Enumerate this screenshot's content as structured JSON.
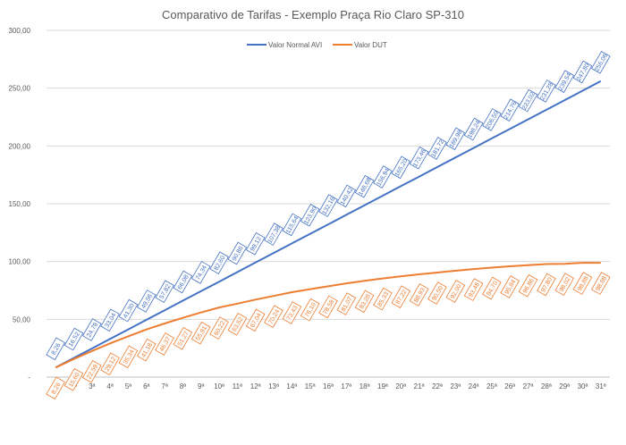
{
  "chart_data": {
    "type": "line",
    "title": "Comparativo de Tarifas - Exemplo Praça Rio Claro SP-310",
    "xlabel": "",
    "ylabel": "",
    "ylim": [
      0,
      300
    ],
    "yticks": [
      "-",
      "50,00",
      "100,00",
      "150,00",
      "200,00",
      "250,00",
      "300,00"
    ],
    "grid": true,
    "legend_position": "top",
    "categories": [
      "1ª",
      "2ª",
      "3ª",
      "4ª",
      "5ª",
      "6ª",
      "7ª",
      "8ª",
      "9ª",
      "10ª",
      "11ª",
      "12ª",
      "13ª",
      "14ª",
      "15ª",
      "16ª",
      "17ª",
      "18ª",
      "19ª",
      "20ª",
      "21ª",
      "22ª",
      "23ª",
      "24ª",
      "25ª",
      "26ª",
      "27ª",
      "28ª",
      "29ª",
      "30ª",
      "31ª"
    ],
    "series": [
      {
        "name": "Valor Normal AVI",
        "color": "#4472C4",
        "values": [
          8.26,
          16.52,
          24.78,
          33.04,
          41.3,
          49.56,
          57.82,
          66.08,
          74.34,
          82.6,
          90.86,
          99.12,
          107.38,
          115.64,
          123.9,
          132.16,
          140.42,
          148.68,
          156.94,
          165.2,
          173.46,
          181.72,
          189.98,
          198.24,
          206.5,
          214.76,
          223.02,
          231.28,
          239.54,
          247.8,
          256.06
        ],
        "labels": [
          "8,26",
          "16,52",
          "24,78",
          "33,04",
          "41,30",
          "49,56",
          "57,82",
          "66,08",
          "74,34",
          "82,60",
          "90,86",
          "99,12",
          "107,38",
          "115,64",
          "123,90",
          "132,16",
          "140,42",
          "148,68",
          "156,94",
          "165,20",
          "173,46",
          "181,72",
          "189,98",
          "198,24",
          "206,50",
          "214,76",
          "223,02",
          "231,28",
          "239,54",
          "247,80",
          "256,06"
        ]
      },
      {
        "name": "Valor DUT",
        "color": "#ED7D31",
        "values": [
          8.26,
          15.6,
          22.59,
          29.12,
          35.34,
          41.18,
          46.37,
          51.27,
          55.91,
          60.22,
          63.52,
          67.04,
          70.24,
          73.43,
          76.1,
          78.58,
          81.07,
          83.28,
          85.33,
          87.22,
          88.93,
          90.5,
          92.0,
          93.48,
          94.7,
          95.84,
          96.86,
          97.8,
          98.02,
          98.88,
          98.88
        ],
        "labels": [
          "8,26",
          "15,60",
          "22,59",
          "29,12",
          "35,34",
          "41,18",
          "46,37",
          "51,27",
          "55,91",
          "60,22",
          "63,52",
          "67,04",
          "70,24",
          "73,43",
          "76,10",
          "78,58",
          "81,07",
          "83,28",
          "85,33",
          "87,22",
          "88,93",
          "90,50",
          "92,00",
          "93,48",
          "94,70",
          "95,84",
          "96,86",
          "97,80",
          "98,02",
          "98,88",
          "98,88"
        ]
      }
    ]
  }
}
